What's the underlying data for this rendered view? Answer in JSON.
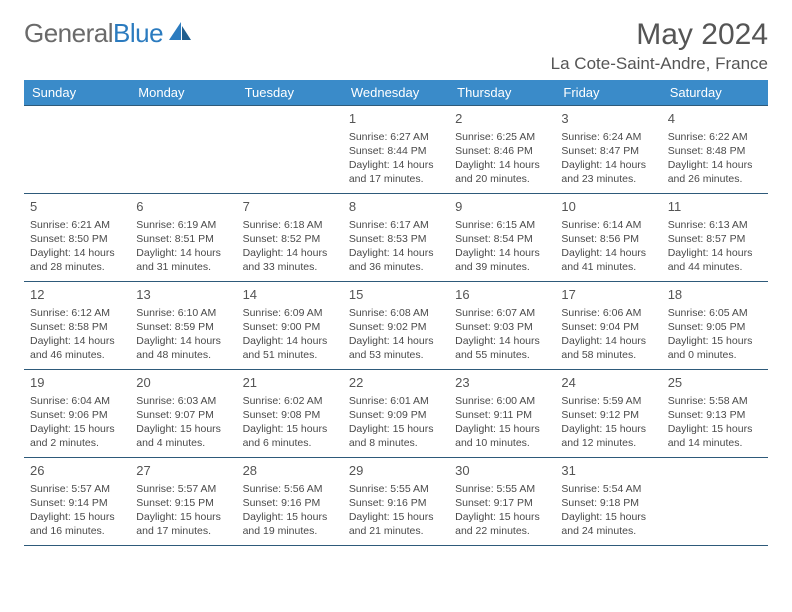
{
  "logo": {
    "part1": "General",
    "part2": "Blue"
  },
  "title": "May 2024",
  "location": "La Cote-Saint-Andre, France",
  "columns": [
    "Sunday",
    "Monday",
    "Tuesday",
    "Wednesday",
    "Thursday",
    "Friday",
    "Saturday"
  ],
  "colors": {
    "header_bg": "#3a8bc9",
    "header_text": "#ffffff",
    "border": "#2e5a7a",
    "text": "#4a4a4a",
    "logo_blue": "#2b7bbf"
  },
  "weeks": [
    [
      null,
      null,
      null,
      {
        "day": "1",
        "sunrise": "Sunrise: 6:27 AM",
        "sunset": "Sunset: 8:44 PM",
        "daylight": "Daylight: 14 hours and 17 minutes."
      },
      {
        "day": "2",
        "sunrise": "Sunrise: 6:25 AM",
        "sunset": "Sunset: 8:46 PM",
        "daylight": "Daylight: 14 hours and 20 minutes."
      },
      {
        "day": "3",
        "sunrise": "Sunrise: 6:24 AM",
        "sunset": "Sunset: 8:47 PM",
        "daylight": "Daylight: 14 hours and 23 minutes."
      },
      {
        "day": "4",
        "sunrise": "Sunrise: 6:22 AM",
        "sunset": "Sunset: 8:48 PM",
        "daylight": "Daylight: 14 hours and 26 minutes."
      }
    ],
    [
      {
        "day": "5",
        "sunrise": "Sunrise: 6:21 AM",
        "sunset": "Sunset: 8:50 PM",
        "daylight": "Daylight: 14 hours and 28 minutes."
      },
      {
        "day": "6",
        "sunrise": "Sunrise: 6:19 AM",
        "sunset": "Sunset: 8:51 PM",
        "daylight": "Daylight: 14 hours and 31 minutes."
      },
      {
        "day": "7",
        "sunrise": "Sunrise: 6:18 AM",
        "sunset": "Sunset: 8:52 PM",
        "daylight": "Daylight: 14 hours and 33 minutes."
      },
      {
        "day": "8",
        "sunrise": "Sunrise: 6:17 AM",
        "sunset": "Sunset: 8:53 PM",
        "daylight": "Daylight: 14 hours and 36 minutes."
      },
      {
        "day": "9",
        "sunrise": "Sunrise: 6:15 AM",
        "sunset": "Sunset: 8:54 PM",
        "daylight": "Daylight: 14 hours and 39 minutes."
      },
      {
        "day": "10",
        "sunrise": "Sunrise: 6:14 AM",
        "sunset": "Sunset: 8:56 PM",
        "daylight": "Daylight: 14 hours and 41 minutes."
      },
      {
        "day": "11",
        "sunrise": "Sunrise: 6:13 AM",
        "sunset": "Sunset: 8:57 PM",
        "daylight": "Daylight: 14 hours and 44 minutes."
      }
    ],
    [
      {
        "day": "12",
        "sunrise": "Sunrise: 6:12 AM",
        "sunset": "Sunset: 8:58 PM",
        "daylight": "Daylight: 14 hours and 46 minutes."
      },
      {
        "day": "13",
        "sunrise": "Sunrise: 6:10 AM",
        "sunset": "Sunset: 8:59 PM",
        "daylight": "Daylight: 14 hours and 48 minutes."
      },
      {
        "day": "14",
        "sunrise": "Sunrise: 6:09 AM",
        "sunset": "Sunset: 9:00 PM",
        "daylight": "Daylight: 14 hours and 51 minutes."
      },
      {
        "day": "15",
        "sunrise": "Sunrise: 6:08 AM",
        "sunset": "Sunset: 9:02 PM",
        "daylight": "Daylight: 14 hours and 53 minutes."
      },
      {
        "day": "16",
        "sunrise": "Sunrise: 6:07 AM",
        "sunset": "Sunset: 9:03 PM",
        "daylight": "Daylight: 14 hours and 55 minutes."
      },
      {
        "day": "17",
        "sunrise": "Sunrise: 6:06 AM",
        "sunset": "Sunset: 9:04 PM",
        "daylight": "Daylight: 14 hours and 58 minutes."
      },
      {
        "day": "18",
        "sunrise": "Sunrise: 6:05 AM",
        "sunset": "Sunset: 9:05 PM",
        "daylight": "Daylight: 15 hours and 0 minutes."
      }
    ],
    [
      {
        "day": "19",
        "sunrise": "Sunrise: 6:04 AM",
        "sunset": "Sunset: 9:06 PM",
        "daylight": "Daylight: 15 hours and 2 minutes."
      },
      {
        "day": "20",
        "sunrise": "Sunrise: 6:03 AM",
        "sunset": "Sunset: 9:07 PM",
        "daylight": "Daylight: 15 hours and 4 minutes."
      },
      {
        "day": "21",
        "sunrise": "Sunrise: 6:02 AM",
        "sunset": "Sunset: 9:08 PM",
        "daylight": "Daylight: 15 hours and 6 minutes."
      },
      {
        "day": "22",
        "sunrise": "Sunrise: 6:01 AM",
        "sunset": "Sunset: 9:09 PM",
        "daylight": "Daylight: 15 hours and 8 minutes."
      },
      {
        "day": "23",
        "sunrise": "Sunrise: 6:00 AM",
        "sunset": "Sunset: 9:11 PM",
        "daylight": "Daylight: 15 hours and 10 minutes."
      },
      {
        "day": "24",
        "sunrise": "Sunrise: 5:59 AM",
        "sunset": "Sunset: 9:12 PM",
        "daylight": "Daylight: 15 hours and 12 minutes."
      },
      {
        "day": "25",
        "sunrise": "Sunrise: 5:58 AM",
        "sunset": "Sunset: 9:13 PM",
        "daylight": "Daylight: 15 hours and 14 minutes."
      }
    ],
    [
      {
        "day": "26",
        "sunrise": "Sunrise: 5:57 AM",
        "sunset": "Sunset: 9:14 PM",
        "daylight": "Daylight: 15 hours and 16 minutes."
      },
      {
        "day": "27",
        "sunrise": "Sunrise: 5:57 AM",
        "sunset": "Sunset: 9:15 PM",
        "daylight": "Daylight: 15 hours and 17 minutes."
      },
      {
        "day": "28",
        "sunrise": "Sunrise: 5:56 AM",
        "sunset": "Sunset: 9:16 PM",
        "daylight": "Daylight: 15 hours and 19 minutes."
      },
      {
        "day": "29",
        "sunrise": "Sunrise: 5:55 AM",
        "sunset": "Sunset: 9:16 PM",
        "daylight": "Daylight: 15 hours and 21 minutes."
      },
      {
        "day": "30",
        "sunrise": "Sunrise: 5:55 AM",
        "sunset": "Sunset: 9:17 PM",
        "daylight": "Daylight: 15 hours and 22 minutes."
      },
      {
        "day": "31",
        "sunrise": "Sunrise: 5:54 AM",
        "sunset": "Sunset: 9:18 PM",
        "daylight": "Daylight: 15 hours and 24 minutes."
      },
      null
    ]
  ]
}
